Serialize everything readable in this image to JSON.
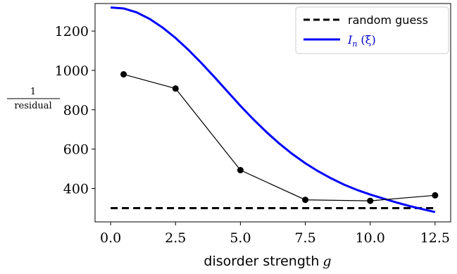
{
  "chart_data": {
    "type": "line",
    "xlabel": "disorder strength",
    "xlabel_symbol": "g",
    "ylabel_numerator": "1",
    "ylabel_denominator": "residual",
    "xlim": [
      -0.6,
      13.1
    ],
    "ylim": [
      230,
      1340
    ],
    "xticks": [
      0.0,
      2.5,
      5.0,
      7.5,
      10.0,
      12.5
    ],
    "xtick_labels": [
      "0.0",
      "2.5",
      "5.0",
      "7.5",
      "10.0",
      "12.5"
    ],
    "yticks": [
      400,
      600,
      800,
      1000,
      1200
    ],
    "ytick_labels": [
      "400",
      "600",
      "800",
      "1000",
      "1200"
    ],
    "grid": false,
    "legend_position": "top-right",
    "series": [
      {
        "name": "random guess",
        "style": "dashed",
        "color": "#000000",
        "x": [
          0.0,
          12.5
        ],
        "y": [
          300,
          300
        ]
      },
      {
        "name": "I_n (ξ)",
        "style": "solid",
        "color": "#0000ff",
        "x": [
          0.0,
          0.5,
          1.0,
          1.5,
          2.0,
          2.5,
          3.0,
          3.5,
          4.0,
          4.5,
          5.0,
          5.5,
          6.0,
          6.5,
          7.0,
          7.5,
          8.0,
          8.5,
          9.0,
          9.5,
          10.0,
          10.5,
          11.0,
          11.5,
          12.0,
          12.5
        ],
        "y": [
          1320,
          1315,
          1295,
          1262,
          1218,
          1165,
          1104,
          1037,
          966,
          893,
          820,
          751,
          687,
          628,
          575,
          528,
          487,
          451,
          419,
          392,
          369,
          349,
          329,
          311,
          295,
          280
        ]
      },
      {
        "name": "",
        "style": "solid-markers",
        "color": "#000000",
        "x": [
          0.5,
          2.5,
          5.0,
          7.5,
          10.0,
          12.5
        ],
        "y": [
          980,
          908,
          493,
          342,
          337,
          365
        ]
      }
    ]
  },
  "legend": {
    "random_label": "random guess",
    "curve_label_main": "I",
    "curve_label_sub": "n",
    "curve_label_arg": "(ξ)"
  }
}
